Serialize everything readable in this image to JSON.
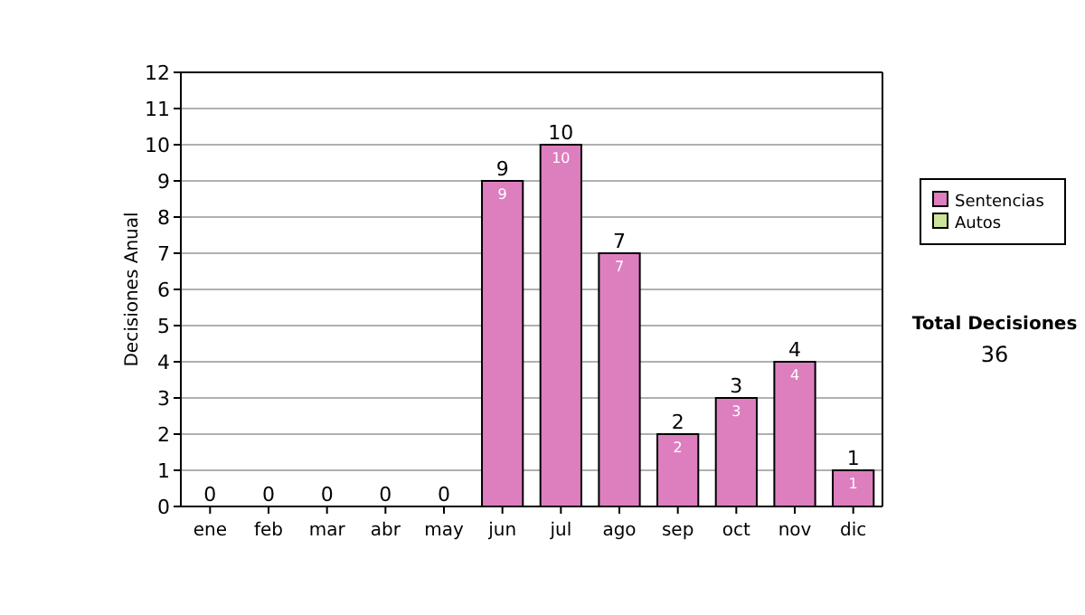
{
  "chart_data": {
    "type": "bar",
    "stacked": true,
    "ylabel": "Decisiones Anual",
    "categories": [
      "ene",
      "feb",
      "mar",
      "abr",
      "may",
      "jun",
      "jul",
      "ago",
      "sep",
      "oct",
      "nov",
      "dic"
    ],
    "series": [
      {
        "name": "Sentencias",
        "color": "#dd7fbf",
        "values": [
          0,
          0,
          0,
          0,
          0,
          9,
          10,
          7,
          2,
          3,
          4,
          1
        ],
        "value_labels": [
          null,
          null,
          null,
          null,
          null,
          "9",
          "10",
          "7",
          "2",
          "3",
          "4",
          "1"
        ]
      },
      {
        "name": "Autos",
        "color": "#cce59a",
        "values": [
          0,
          0,
          0,
          0,
          0,
          0,
          0,
          0,
          0,
          0,
          0,
          0
        ]
      }
    ],
    "totals": [
      "0",
      "0",
      "0",
      "0",
      "0",
      "9",
      "10",
      "7",
      "2",
      "3",
      "4",
      "1"
    ],
    "ylim": [
      0,
      12
    ],
    "yticks": [
      0,
      1,
      2,
      3,
      4,
      5,
      6,
      7,
      8,
      9,
      10,
      11,
      12
    ],
    "grid": "y",
    "legend": "right",
    "annotations": [
      "Total Decisiones",
      "36"
    ]
  }
}
